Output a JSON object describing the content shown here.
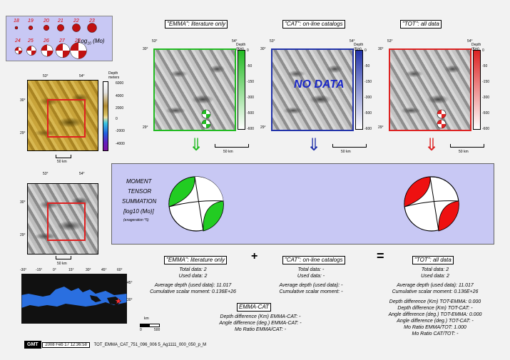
{
  "magnitude_legend": {
    "row1": [
      "18",
      "19",
      "20",
      "21",
      "22",
      "23"
    ],
    "row2": [
      "24",
      "25",
      "26",
      "27",
      "28"
    ],
    "label_pre": "Log",
    "label_sub": "10",
    "label_post": "(Mo)"
  },
  "topo_map": {
    "lon_ticks": [
      "53°",
      "54°"
    ],
    "lat_ticks": [
      "30°",
      "29°"
    ],
    "colorbar_title": "Depth",
    "colorbar_unit": "meters",
    "colorbar_ticks": [
      "6000",
      "4000",
      "2000",
      "0",
      "-2000",
      "-4000"
    ],
    "scale_label": "50 km"
  },
  "relief_map": {
    "lon_ticks": [
      "53°",
      "54°"
    ],
    "lat_ticks": [
      "30°",
      "29°"
    ],
    "scale_label": "50 km"
  },
  "world_map": {
    "lon_ticks": [
      "-30°",
      "-15°",
      "0°",
      "15°",
      "30°",
      "45°",
      "60°"
    ],
    "lat_ticks": [
      "45°",
      "30°"
    ],
    "scale_unit": "km",
    "scale_ticks": [
      "0",
      "500"
    ]
  },
  "panels": [
    {
      "key": "emma",
      "title": "\"EMMA\": literature only",
      "color": "#22bb22",
      "arrow": "⇓",
      "lon_ticks": [
        "53°",
        "54°"
      ],
      "lat_ticks": [
        "30°",
        "29°"
      ],
      "depth_title": "Depth (Km)",
      "depth_ticks": [
        "0",
        "-50",
        "-150",
        "-300",
        "-500",
        "-600"
      ],
      "scale_label": "50 km",
      "overlay": ""
    },
    {
      "key": "cat",
      "title": "\"CAT\": on-line catalogs",
      "color": "#2233aa",
      "arrow": "⇓",
      "lon_ticks": [
        "53°",
        "54°"
      ],
      "lat_ticks": [
        "30°",
        "29°"
      ],
      "depth_title": "Depth (Km)",
      "depth_ticks": [
        "0",
        "-50",
        "-150",
        "-300",
        "-500",
        "-600"
      ],
      "scale_label": "50 km",
      "overlay": "NO DATA"
    },
    {
      "key": "tot",
      "title": "\"TOT\": all data",
      "color": "#dd2222",
      "arrow": "⇓",
      "lon_ticks": [
        "53°",
        "54°"
      ],
      "lat_ticks": [
        "30°",
        "29°"
      ],
      "depth_title": "Depth (Km)",
      "depth_ticks": [
        "0",
        "-50",
        "-150",
        "-300",
        "-500",
        "-600"
      ],
      "scale_label": "50 km",
      "overlay": ""
    }
  ],
  "summation": {
    "line1": "MOMENT",
    "line2": "TENSOR",
    "line3": "SUMMATION",
    "line4": "[log10 (Mo)]",
    "line5": "(exageration *5)",
    "green_color": "#22cc22",
    "red_color": "#ee1111"
  },
  "operators": {
    "plus": "+",
    "equals": "="
  },
  "stats": {
    "emma": {
      "title": "\"EMMA\": literature only",
      "total": "Total data:    2",
      "used": "Used data:    2",
      "avg_depth": "Average depth (used data):    11.017",
      "moment": "Cumulative scalar moment: 0.136E+26"
    },
    "cat": {
      "title": "\"CAT\": on-line catalogs",
      "total": "Total data: -",
      "used": "Used data: -",
      "avg_depth": "Average depth (used data): -",
      "moment": "Cumulative scalar moment: -"
    },
    "tot": {
      "title": "\"TOT\": all data",
      "total": "Total data:    2",
      "used": "Used data:    2",
      "avg_depth": "Average depth (used data):    11.017",
      "moment": "Cumulative scalar moment: 0.136E+26",
      "diff1": "Depth difference (Km) TOT-EMMA:    0.000",
      "diff2": "Depth difference (Km) TOT-CAT: -",
      "diff3": "Angle difference (deg.) TOT-EMMA:    0.000",
      "diff4": "Angle difference (deg.) TOT-CAT: -",
      "diff5": "Mo Ratio EMMA/TOT:    1.000",
      "diff6": "Mo Ratio CAT/TOT: -"
    }
  },
  "emma_cat": {
    "title": "EMMA-CAT",
    "line1": "Depth difference (Km) EMMA-CAT: -",
    "line2": "Angle difference (deg.) EMMA-CAT: -",
    "line3": "Mo Ratio EMMA/CAT: -"
  },
  "footer": {
    "logo": "GMT",
    "timestamp": "2008 Feb 17 12:36:58",
    "filename": "TOT_EMMA_CAT_751_096_006 5_Ag1111_000_050_p_M"
  }
}
